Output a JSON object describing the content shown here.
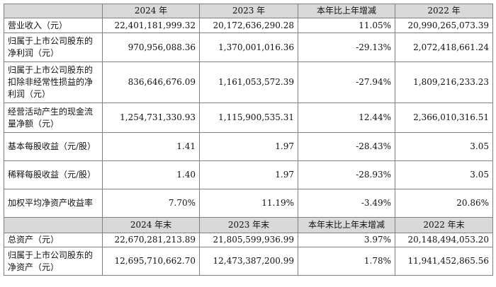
{
  "header1": [
    "",
    "2024 年",
    "2023 年",
    "本年比上年增减",
    "2022 年"
  ],
  "rows1": [
    {
      "label": "营业收入（元）",
      "v2024": "22,401,181,999.32",
      "v2023": "20,172,636,290.28",
      "change": "11.05%",
      "v2022": "20,990,265,073.39"
    },
    {
      "label": "归属于上市公司股东的净利润（元）",
      "v2024": "970,956,088.36",
      "v2023": "1,370,001,016.36",
      "change": "-29.13%",
      "v2022": "2,072,418,661.24"
    },
    {
      "label": "归属于上市公司股东的扣除非经常性损益的净利润（元）",
      "v2024": "836,646,676.09",
      "v2023": "1,161,053,572.39",
      "change": "-27.94%",
      "v2022": "1,809,216,233.23"
    },
    {
      "label": "经营活动产生的现金流量净额（元）",
      "v2024": "1,254,731,330.93",
      "v2023": "1,115,900,535.31",
      "change": "12.44%",
      "v2022": "2,366,010,316.51"
    },
    {
      "label": "基本每股收益（元/股）",
      "v2024": "1.41",
      "v2023": "1.97",
      "change": "-28.43%",
      "v2022": "3.05"
    },
    {
      "label": "稀释每股收益（元/股）",
      "v2024": "1.40",
      "v2023": "1.97",
      "change": "-28.93%",
      "v2022": "3.05"
    },
    {
      "label": "加权平均净资产收益率",
      "v2024": "7.70%",
      "v2023": "11.19%",
      "change": "-3.49%",
      "v2022": "20.86%"
    }
  ],
  "header2": [
    "",
    "2024 年末",
    "2023 年末",
    "本年末比上年末增减",
    "2022 年末"
  ],
  "rows2": [
    {
      "label": "总资产（元）",
      "v2024": "22,670,281,213.89",
      "v2023": "21,805,599,936.99",
      "change": "3.97%",
      "v2022": "20,148,494,053.20"
    },
    {
      "label": "归属于上市公司股东的净资产（元）",
      "v2024": "12,695,710,662.70",
      "v2023": "12,473,387,200.99",
      "change": "1.78%",
      "v2022": "11,941,452,865.56"
    }
  ]
}
